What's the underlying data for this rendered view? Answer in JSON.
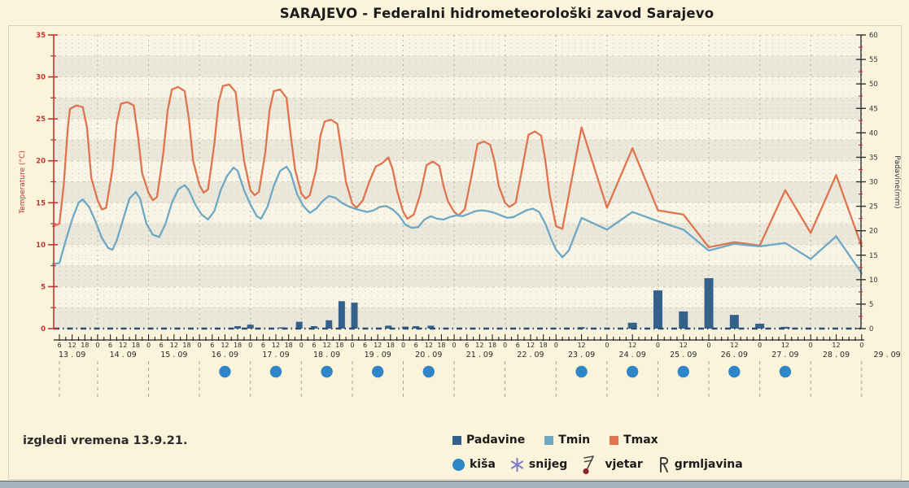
{
  "title": "SARAJEVO - Federalni hidrometeorološki zavod Sarajevo",
  "note": "izgledi vremena 13.9.21.",
  "colors": {
    "background": "#fbf4da",
    "plot_cream": "#f8f4e6",
    "plot_gray": "#eae7db",
    "tmax": "#e0744e",
    "tmin": "#6fa8c4",
    "padavine": "#33618c",
    "rain_dot": "#2e86c8",
    "temp_axis": "#c43333",
    "right_axis_text": "#30363d",
    "snow": "#7d7dc4",
    "wind_dot": "#8b2231",
    "zero_line": "#2b4d70",
    "text": "#222222"
  },
  "chart_data": {
    "type": "line+bar",
    "title": "SARAJEVO - Federalni hidrometeorološki zavod Sarajevo",
    "left_axis": {
      "label": "Temperature (°C)",
      "min": 0,
      "max": 35,
      "major_step": 5,
      "minor_step": 2.5
    },
    "right_axis": {
      "label": "Padavine(mm)",
      "min": 0,
      "max": 60,
      "major_step": 5,
      "minor_step": 2.5
    },
    "x_axis": {
      "hours_start": 3,
      "hours_end": 384,
      "tick_every_h": 3,
      "dense_label_until_h": 240,
      "dense_label_every_h": 6,
      "sparse_label_every_h": 12,
      "dates": [
        "13 . 09",
        "14 . 09",
        "15 . 09",
        "16 . 09",
        "17 . 09",
        "18 . 09",
        "19 . 09",
        "20 . 09",
        "21 . 09",
        "22 . 09",
        "23 . 09",
        "24 . 09",
        "25 . 09",
        "26 . 09",
        "27 . 09",
        "28 . 09",
        "29 . 09"
      ]
    },
    "series": [
      {
        "name": "Tmax",
        "type": "line",
        "color": "#e0744e",
        "points": [
          [
            3,
            12.2
          ],
          [
            6,
            12.5
          ],
          [
            8,
            17
          ],
          [
            10,
            24
          ],
          [
            11,
            26.2
          ],
          [
            14,
            26.6
          ],
          [
            17,
            26.4
          ],
          [
            19,
            24
          ],
          [
            21,
            18
          ],
          [
            24,
            15.3
          ],
          [
            26,
            14.2
          ],
          [
            28,
            14.4
          ],
          [
            31,
            19
          ],
          [
            33,
            24.5
          ],
          [
            35,
            26.8
          ],
          [
            38,
            27
          ],
          [
            41,
            26.6
          ],
          [
            43,
            23
          ],
          [
            45,
            18.5
          ],
          [
            48,
            16.2
          ],
          [
            50,
            15.3
          ],
          [
            52,
            15.7
          ],
          [
            55,
            21
          ],
          [
            57,
            26
          ],
          [
            59,
            28.5
          ],
          [
            62,
            28.8
          ],
          [
            65,
            28.3
          ],
          [
            67,
            25
          ],
          [
            69,
            20
          ],
          [
            72,
            17.1
          ],
          [
            74,
            16.2
          ],
          [
            76,
            16.6
          ],
          [
            79,
            22
          ],
          [
            81,
            27
          ],
          [
            83,
            28.9
          ],
          [
            86,
            29.1
          ],
          [
            89,
            28.2
          ],
          [
            91,
            24
          ],
          [
            93,
            20
          ],
          [
            96,
            16.5
          ],
          [
            98,
            15.9
          ],
          [
            100,
            16.3
          ],
          [
            103,
            21
          ],
          [
            105,
            26
          ],
          [
            107,
            28.3
          ],
          [
            110,
            28.5
          ],
          [
            113,
            27.5
          ],
          [
            115,
            23
          ],
          [
            117,
            19
          ],
          [
            120,
            16.1
          ],
          [
            122,
            15.5
          ],
          [
            124,
            15.9
          ],
          [
            127,
            19
          ],
          [
            129,
            23
          ],
          [
            131,
            24.7
          ],
          [
            134,
            24.9
          ],
          [
            137,
            24.4
          ],
          [
            139,
            21
          ],
          [
            141,
            17.5
          ],
          [
            144,
            14.9
          ],
          [
            146,
            14.4
          ],
          [
            149,
            15.3
          ],
          [
            152,
            17.5
          ],
          [
            155,
            19.3
          ],
          [
            158,
            19.7
          ],
          [
            161,
            20.4
          ],
          [
            163,
            19
          ],
          [
            165,
            16.5
          ],
          [
            168,
            13.9
          ],
          [
            170,
            13.1
          ],
          [
            173,
            13.6
          ],
          [
            176,
            16
          ],
          [
            179,
            19.5
          ],
          [
            182,
            19.9
          ],
          [
            185,
            19.4
          ],
          [
            187,
            17
          ],
          [
            189,
            15.2
          ],
          [
            192,
            13.9
          ],
          [
            194,
            13.5
          ],
          [
            197,
            14.2
          ],
          [
            200,
            18
          ],
          [
            203,
            22
          ],
          [
            206,
            22.3
          ],
          [
            209,
            21.9
          ],
          [
            211,
            20
          ],
          [
            213,
            17
          ],
          [
            216,
            15
          ],
          [
            218,
            14.5
          ],
          [
            221,
            15
          ],
          [
            224,
            19
          ],
          [
            227,
            23.1
          ],
          [
            230,
            23.5
          ],
          [
            233,
            23
          ],
          [
            235,
            20
          ],
          [
            237,
            16
          ],
          [
            240,
            12.2
          ],
          [
            243,
            11.9
          ],
          [
            252,
            24
          ],
          [
            264,
            14.4
          ],
          [
            276,
            21.5
          ],
          [
            288,
            14.1
          ],
          [
            300,
            13.6
          ],
          [
            312,
            9.7
          ],
          [
            324,
            10.3
          ],
          [
            336,
            9.9
          ],
          [
            348,
            16.5
          ],
          [
            360,
            11.4
          ],
          [
            372,
            18.3
          ],
          [
            384,
            9.8
          ]
        ]
      },
      {
        "name": "Tmin",
        "type": "line",
        "color": "#6fa8c4",
        "points": [
          [
            3,
            7.7
          ],
          [
            6,
            7.8
          ],
          [
            9,
            10.5
          ],
          [
            12,
            13
          ],
          [
            15,
            15
          ],
          [
            17,
            15.4
          ],
          [
            20,
            14.5
          ],
          [
            23,
            12.8
          ],
          [
            26,
            10.8
          ],
          [
            29,
            9.6
          ],
          [
            31,
            9.4
          ],
          [
            33,
            10.5
          ],
          [
            36,
            13
          ],
          [
            39,
            15.5
          ],
          [
            42,
            16.3
          ],
          [
            44,
            15.5
          ],
          [
            47,
            12.5
          ],
          [
            50,
            11.2
          ],
          [
            53,
            10.9
          ],
          [
            56,
            12.5
          ],
          [
            59,
            15
          ],
          [
            62,
            16.6
          ],
          [
            65,
            17.1
          ],
          [
            67,
            16.5
          ],
          [
            70,
            14.8
          ],
          [
            73,
            13.6
          ],
          [
            76,
            13
          ],
          [
            79,
            14
          ],
          [
            82,
            16.5
          ],
          [
            85,
            18.2
          ],
          [
            88,
            19.2
          ],
          [
            90,
            18.8
          ],
          [
            93,
            16.5
          ],
          [
            96,
            14.8
          ],
          [
            99,
            13.4
          ],
          [
            101,
            13.1
          ],
          [
            104,
            14.5
          ],
          [
            107,
            17
          ],
          [
            110,
            18.8
          ],
          [
            113,
            19.3
          ],
          [
            115,
            18.5
          ],
          [
            118,
            16
          ],
          [
            121,
            14.6
          ],
          [
            124,
            13.8
          ],
          [
            127,
            14.3
          ],
          [
            130,
            15.2
          ],
          [
            133,
            15.8
          ],
          [
            136,
            15.6
          ],
          [
            139,
            15
          ],
          [
            142,
            14.6
          ],
          [
            145,
            14.3
          ],
          [
            148,
            14.1
          ],
          [
            151,
            13.9
          ],
          [
            154,
            14.1
          ],
          [
            157,
            14.5
          ],
          [
            160,
            14.6
          ],
          [
            163,
            14.2
          ],
          [
            166,
            13.5
          ],
          [
            169,
            12.4
          ],
          [
            172,
            12
          ],
          [
            175,
            12.1
          ],
          [
            178,
            13
          ],
          [
            181,
            13.4
          ],
          [
            184,
            13.1
          ],
          [
            187,
            13
          ],
          [
            190,
            13.3
          ],
          [
            193,
            13.5
          ],
          [
            196,
            13.4
          ],
          [
            199,
            13.7
          ],
          [
            202,
            14
          ],
          [
            205,
            14.1
          ],
          [
            208,
            14
          ],
          [
            211,
            13.8
          ],
          [
            214,
            13.5
          ],
          [
            217,
            13.2
          ],
          [
            220,
            13.3
          ],
          [
            223,
            13.7
          ],
          [
            226,
            14.1
          ],
          [
            229,
            14.3
          ],
          [
            232,
            13.9
          ],
          [
            235,
            12.5
          ],
          [
            238,
            10.5
          ],
          [
            240,
            9.4
          ],
          [
            243,
            8.5
          ],
          [
            246,
            9.3
          ],
          [
            252,
            13.2
          ],
          [
            264,
            11.8
          ],
          [
            276,
            13.9
          ],
          [
            288,
            12.8
          ],
          [
            300,
            11.8
          ],
          [
            312,
            9.3
          ],
          [
            324,
            10.1
          ],
          [
            336,
            9.8
          ],
          [
            348,
            10.2
          ],
          [
            360,
            8.3
          ],
          [
            372,
            11
          ],
          [
            384,
            6.6
          ]
        ]
      },
      {
        "name": "Padavine",
        "type": "bar",
        "unit": "mm",
        "color": "#33618c",
        "points": [
          [
            90,
            0.5
          ],
          [
            96,
            0.8
          ],
          [
            111,
            0.25
          ],
          [
            119,
            1.4
          ],
          [
            126,
            0.5
          ],
          [
            133,
            1.7
          ],
          [
            139,
            5.6
          ],
          [
            145,
            5.3
          ],
          [
            161,
            0.6
          ],
          [
            169,
            0.4
          ],
          [
            174,
            0.5
          ],
          [
            181,
            0.6
          ],
          [
            252,
            0.3
          ],
          [
            276,
            1.2
          ],
          [
            288,
            7.8
          ],
          [
            300,
            3.5
          ],
          [
            312,
            10.3
          ],
          [
            324,
            2.8
          ],
          [
            336,
            1
          ],
          [
            348,
            0.35
          ]
        ]
      }
    ],
    "rain_marker_day_indices": [
      3,
      4,
      5,
      6,
      7,
      10,
      11,
      12,
      13,
      14
    ],
    "grid": "minor dashed vertical every 3h, horizontal bands every 2.5°C",
    "legend_position": "bottom-center"
  },
  "legend": {
    "series": [
      {
        "label": "Padavine"
      },
      {
        "label": "Tmin"
      },
      {
        "label": "Tmax"
      }
    ],
    "symbols": [
      {
        "label": "kiša"
      },
      {
        "label": "snijeg"
      },
      {
        "label": "vjetar"
      },
      {
        "label": "grmljavina"
      }
    ]
  }
}
